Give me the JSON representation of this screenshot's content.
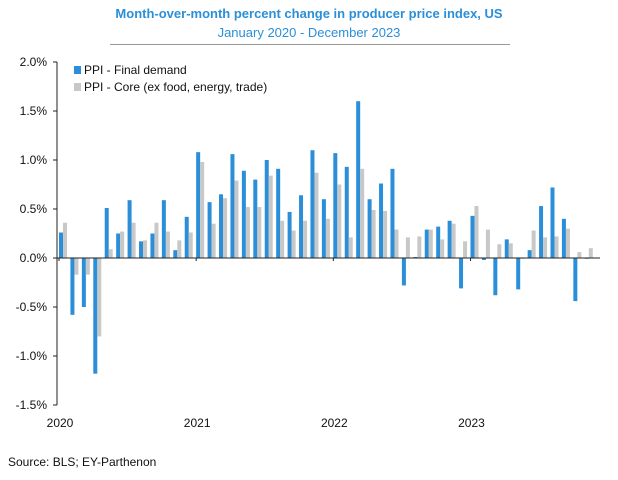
{
  "chart_data": {
    "type": "bar",
    "title": "Month-over-month percent change in producer price index, US",
    "subtitle": "January 2020 - December 2023",
    "source": "Source: BLS; EY-Parthenon",
    "xlabel": "",
    "ylabel": "",
    "ylim": [
      -1.5,
      2.0
    ],
    "yticks": [
      2.0,
      1.5,
      1.0,
      0.5,
      0.0,
      -0.5,
      -1.0,
      -1.5
    ],
    "ytick_labels": [
      "2.0%",
      "1.5%",
      "1.0%",
      "0.5%",
      "0.0%",
      "-0.5%",
      "-1.0%",
      "-1.5%"
    ],
    "xtick_labels": [
      {
        "label": "2020",
        "month_index": 0
      },
      {
        "label": "2021",
        "month_index": 12
      },
      {
        "label": "2022",
        "month_index": 24
      },
      {
        "label": "2023",
        "month_index": 36
      }
    ],
    "legend_position": "top-left",
    "grid": false,
    "months": 48,
    "series": [
      {
        "name": "PPI - Final demand",
        "color": "#2a8fd8",
        "values": [
          0.26,
          -0.58,
          -0.5,
          -1.18,
          0.51,
          0.25,
          0.59,
          0.17,
          0.25,
          0.59,
          0.08,
          0.42,
          1.08,
          0.57,
          0.65,
          1.06,
          0.89,
          0.8,
          1.0,
          0.91,
          0.47,
          0.64,
          1.1,
          0.6,
          1.07,
          0.93,
          1.6,
          0.6,
          0.76,
          0.91,
          -0.28,
          0.01,
          0.29,
          0.32,
          0.38,
          -0.31,
          0.43,
          -0.02,
          -0.38,
          0.19,
          -0.32,
          0.08,
          0.53,
          0.72,
          0.4,
          -0.44,
          0.0,
          null
        ]
      },
      {
        "name": "PPI - Core (ex food, energy, trade)",
        "color": "#c8c8c8",
        "values": [
          0.36,
          -0.17,
          -0.17,
          -0.8,
          0.09,
          0.27,
          0.36,
          0.18,
          0.36,
          0.27,
          0.18,
          0.26,
          0.98,
          0.35,
          0.61,
          0.79,
          0.52,
          0.52,
          0.84,
          0.38,
          0.28,
          0.38,
          0.87,
          0.4,
          0.75,
          0.21,
          0.91,
          0.49,
          0.48,
          0.29,
          0.21,
          0.22,
          0.29,
          0.19,
          0.35,
          0.17,
          0.53,
          0.29,
          0.14,
          0.15,
          0.0,
          0.28,
          0.21,
          0.22,
          0.3,
          0.06,
          0.1,
          null
        ]
      }
    ]
  }
}
